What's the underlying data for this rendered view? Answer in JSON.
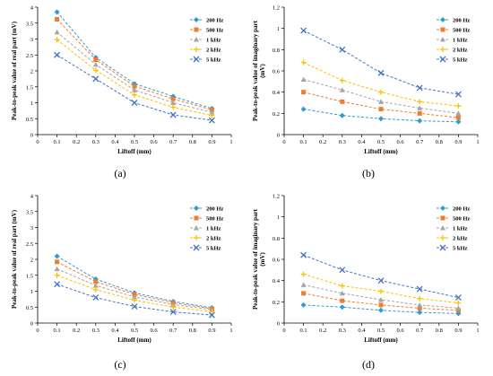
{
  "figure": {
    "captions": [
      "(a)",
      "(b)",
      "(c)",
      "(d)"
    ]
  },
  "chart_data": [
    {
      "panel": "a",
      "type": "line",
      "xlabel": "Liftoff (mm)",
      "ylabel": "Peak-to-peak value of real part (mV)",
      "xlim": [
        0,
        1
      ],
      "ylim": [
        0,
        4
      ],
      "xticks": [
        "0",
        "0.1",
        "0.2",
        "0.3",
        "0.4",
        "0.5",
        "0.6",
        "0.7",
        "0.8",
        "0.9",
        "1"
      ],
      "yticks": [
        "0",
        "0.5",
        "1",
        "1.5",
        "2",
        "2.5",
        "3",
        "3.5",
        "4"
      ],
      "legend_position": "top-right",
      "x": [
        0.1,
        0.3,
        0.5,
        0.7,
        0.9
      ],
      "series": [
        {
          "name": "200 Hz",
          "values": [
            3.85,
            2.42,
            1.6,
            1.2,
            0.82
          ],
          "color": "#2e9bd6",
          "marker": "diamond"
        },
        {
          "name": "500 Hz",
          "values": [
            3.62,
            2.35,
            1.52,
            1.12,
            0.78
          ],
          "color": "#ed7d31",
          "marker": "square"
        },
        {
          "name": "1 kHz",
          "values": [
            3.22,
            2.2,
            1.4,
            1.0,
            0.7
          ],
          "color": "#a5a5a5",
          "marker": "triangle"
        },
        {
          "name": "2 kHz",
          "values": [
            2.98,
            2.02,
            1.25,
            0.86,
            0.6
          ],
          "color": "#ffc000",
          "marker": "cross"
        },
        {
          "name": "5 kHz",
          "values": [
            2.5,
            1.75,
            1.0,
            0.62,
            0.45
          ],
          "color": "#4472c4",
          "marker": "x"
        }
      ]
    },
    {
      "panel": "b",
      "type": "line",
      "xlabel": "Liftoff (mm)",
      "ylabel": "Peak-to-peak value of imaginary part (mV)",
      "xlim": [
        0,
        1
      ],
      "ylim": [
        0,
        1.2
      ],
      "xticks": [
        "0",
        "0.1",
        "0.2",
        "0.3",
        "0.4",
        "0.5",
        "0.6",
        "0.7",
        "0.8",
        "0.9",
        "1"
      ],
      "yticks": [
        "0",
        "0.2",
        "0.4",
        "0.6",
        "0.8",
        "1",
        "1.2"
      ],
      "legend_position": "top-right",
      "x": [
        0.1,
        0.3,
        0.5,
        0.7,
        0.9
      ],
      "series": [
        {
          "name": "200 Hz",
          "values": [
            0.24,
            0.18,
            0.15,
            0.13,
            0.12
          ],
          "color": "#2e9bd6",
          "marker": "diamond"
        },
        {
          "name": "500 Hz",
          "values": [
            0.4,
            0.31,
            0.24,
            0.2,
            0.16
          ],
          "color": "#ed7d31",
          "marker": "square"
        },
        {
          "name": "1 kHz",
          "values": [
            0.52,
            0.42,
            0.31,
            0.25,
            0.2
          ],
          "color": "#a5a5a5",
          "marker": "triangle"
        },
        {
          "name": "2 kHz",
          "values": [
            0.68,
            0.51,
            0.4,
            0.31,
            0.27
          ],
          "color": "#ffc000",
          "marker": "cross"
        },
        {
          "name": "5 kHz",
          "values": [
            0.98,
            0.8,
            0.58,
            0.44,
            0.38
          ],
          "color": "#4472c4",
          "marker": "x"
        }
      ]
    },
    {
      "panel": "c",
      "type": "line",
      "xlabel": "Liftoff (mm)",
      "ylabel": "Peak-to-peak value of real part (mV)",
      "xlim": [
        0,
        1
      ],
      "ylim": [
        0,
        4
      ],
      "xticks": [
        "0",
        "0.1",
        "0.2",
        "0.3",
        "0.4",
        "0.5",
        "0.6",
        "0.7",
        "0.8",
        "0.9",
        "1"
      ],
      "yticks": [
        "0",
        "0.5",
        "1",
        "1.5",
        "2",
        "2.5",
        "3",
        "3.5",
        "4"
      ],
      "legend_position": "top-right",
      "x": [
        0.1,
        0.3,
        0.5,
        0.7,
        0.9
      ],
      "series": [
        {
          "name": "200 Hz",
          "values": [
            2.1,
            1.38,
            0.95,
            0.68,
            0.48
          ],
          "color": "#2e9bd6",
          "marker": "diamond"
        },
        {
          "name": "500 Hz",
          "values": [
            1.92,
            1.3,
            0.9,
            0.64,
            0.45
          ],
          "color": "#ed7d31",
          "marker": "square"
        },
        {
          "name": "1 kHz",
          "values": [
            1.7,
            1.18,
            0.82,
            0.58,
            0.42
          ],
          "color": "#a5a5a5",
          "marker": "triangle"
        },
        {
          "name": "2 kHz",
          "values": [
            1.5,
            1.05,
            0.72,
            0.5,
            0.36
          ],
          "color": "#ffc000",
          "marker": "cross"
        },
        {
          "name": "5 kHz",
          "values": [
            1.22,
            0.8,
            0.52,
            0.35,
            0.25
          ],
          "color": "#4472c4",
          "marker": "x"
        }
      ]
    },
    {
      "panel": "d",
      "type": "line",
      "xlabel": "Liftoff (mm)",
      "ylabel": "Peak-to-peak value of imaginary part (mV)",
      "xlim": [
        0,
        1
      ],
      "ylim": [
        0,
        1.2
      ],
      "xticks": [
        "0",
        "0.1",
        "0.2",
        "0.3",
        "0.4",
        "0.5",
        "0.6",
        "0.7",
        "0.8",
        "0.9",
        "1"
      ],
      "yticks": [
        "0",
        "0.2",
        "0.4",
        "0.6",
        "0.8",
        "1",
        "1.2"
      ],
      "legend_position": "top-right",
      "x": [
        0.1,
        0.3,
        0.5,
        0.7,
        0.9
      ],
      "series": [
        {
          "name": "200 Hz",
          "values": [
            0.17,
            0.15,
            0.12,
            0.1,
            0.09
          ],
          "color": "#2e9bd6",
          "marker": "diamond"
        },
        {
          "name": "500 Hz",
          "values": [
            0.28,
            0.21,
            0.17,
            0.14,
            0.12
          ],
          "color": "#ed7d31",
          "marker": "square"
        },
        {
          "name": "1 kHz",
          "values": [
            0.36,
            0.28,
            0.22,
            0.17,
            0.14
          ],
          "color": "#a5a5a5",
          "marker": "triangle"
        },
        {
          "name": "2 kHz",
          "values": [
            0.46,
            0.35,
            0.3,
            0.23,
            0.19
          ],
          "color": "#ffc000",
          "marker": "cross"
        },
        {
          "name": "5 kHz",
          "values": [
            0.64,
            0.5,
            0.4,
            0.32,
            0.24
          ],
          "color": "#4472c4",
          "marker": "x"
        }
      ]
    }
  ]
}
